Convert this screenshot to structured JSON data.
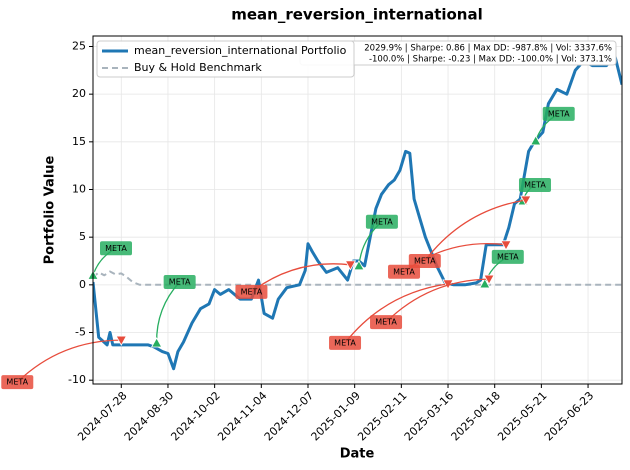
{
  "chart_data": {
    "type": "line",
    "title": "mean_reversion_international",
    "x_label": "Date",
    "y_label": "Portfolio Value",
    "xlim": [
      "2024-07-08",
      "2025-07-17"
    ],
    "ylim": [
      -10.4,
      26.1
    ],
    "xticks": [
      "2024-07-28",
      "2024-08-30",
      "2024-10-02",
      "2024-11-04",
      "2024-12-07",
      "2025-01-09",
      "2025-02-11",
      "2025-03-16",
      "2025-04-18",
      "2025-05-21",
      "2025-06-23"
    ],
    "yticks": [
      -10,
      -5,
      0,
      5,
      10,
      15,
      20,
      25
    ],
    "grid": true,
    "legend": "upper left",
    "series": [
      {
        "name": "mean_reversion_international Portfolio",
        "color": "#1f77b4",
        "style": "solid",
        "x": [
          "2024-07-08",
          "2024-07-12",
          "2024-07-18",
          "2024-07-20",
          "2024-07-22",
          "2024-08-16",
          "2024-08-20",
          "2024-08-26",
          "2024-08-30",
          "2024-09-03",
          "2024-09-06",
          "2024-09-10",
          "2024-09-16",
          "2024-09-22",
          "2024-09-28",
          "2024-10-02",
          "2024-10-06",
          "2024-10-12",
          "2024-10-20",
          "2024-10-28",
          "2024-11-02",
          "2024-11-06",
          "2024-11-12",
          "2024-11-16",
          "2024-11-22",
          "2024-12-01",
          "2024-12-05",
          "2024-12-07",
          "2024-12-10",
          "2024-12-14",
          "2024-12-20",
          "2024-12-28",
          "2025-01-04",
          "2025-01-08",
          "2025-01-12",
          "2025-01-16",
          "2025-01-20",
          "2025-01-24",
          "2025-01-28",
          "2025-02-02",
          "2025-02-06",
          "2025-02-10",
          "2025-02-14",
          "2025-02-17",
          "2025-02-20",
          "2025-02-24",
          "2025-02-28",
          "2025-03-04",
          "2025-03-08",
          "2025-03-14",
          "2025-03-20",
          "2025-03-28",
          "2025-04-05",
          "2025-04-08",
          "2025-04-12",
          "2025-04-24",
          "2025-04-28",
          "2025-05-02",
          "2025-05-06",
          "2025-05-12",
          "2025-05-16",
          "2025-05-22",
          "2025-05-26",
          "2025-06-01",
          "2025-06-08",
          "2025-06-14",
          "2025-06-20",
          "2025-06-26",
          "2025-07-06",
          "2025-07-12",
          "2025-07-17"
        ],
        "values": [
          0.3,
          -5.5,
          -6.3,
          -5.0,
          -6.3,
          -6.3,
          -6.5,
          -7,
          -7.2,
          -8.8,
          -7,
          -6,
          -4,
          -2.5,
          -2,
          -0.5,
          -1,
          -0.5,
          -1.5,
          -1.5,
          0.5,
          -3,
          -3.5,
          -1.5,
          -0.3,
          0,
          1.5,
          4.3,
          3.5,
          2.5,
          1.3,
          1.8,
          0.5,
          2.5,
          2.5,
          2.0,
          5,
          8,
          9.5,
          10.5,
          11,
          12,
          14,
          13.8,
          9,
          7,
          5,
          3.5,
          2,
          0.2,
          0,
          0,
          0.2,
          0.5,
          4.2,
          4.2,
          6,
          8.5,
          9,
          14,
          15,
          16,
          19,
          20.5,
          20,
          22.5,
          23.5,
          23,
          23,
          24,
          21
        ]
      },
      {
        "name": "Buy & Hold Benchmark",
        "color": "#a9b4bd",
        "style": "dashed",
        "x": [
          "2024-07-08",
          "2024-07-12",
          "2024-07-16",
          "2024-07-20",
          "2024-07-24",
          "2024-07-28",
          "2024-08-01",
          "2024-08-05",
          "2024-08-10",
          "2025-07-17"
        ],
        "values": [
          0.8,
          1.3,
          1.0,
          1.4,
          1.1,
          1.2,
          0.8,
          0.3,
          0,
          0
        ]
      }
    ],
    "markers": [
      {
        "kind": "buy",
        "x": "2024-07-08",
        "value": 1.0,
        "label": "META",
        "color": "#27ae60"
      },
      {
        "kind": "buy",
        "x": "2024-08-22",
        "value": -6.1,
        "label": "META",
        "color": "#27ae60"
      },
      {
        "kind": "buy",
        "x": "2025-01-12",
        "value": 2.0,
        "label": "META",
        "color": "#27ae60"
      },
      {
        "kind": "buy",
        "x": "2025-04-11",
        "value": 0.1,
        "label": "META",
        "color": "#27ae60"
      },
      {
        "kind": "buy",
        "x": "2025-05-08",
        "value": 8.8,
        "label": "META",
        "color": "#27ae60"
      },
      {
        "kind": "buy",
        "x": "2025-05-17",
        "value": 15.1,
        "label": "META",
        "color": "#27ae60"
      },
      {
        "kind": "sell",
        "x": "2024-07-28",
        "value": -5.8,
        "label": "META",
        "color": "#e74c3c"
      },
      {
        "kind": "sell",
        "x": "2025-01-06",
        "value": 2.1,
        "label": "META",
        "color": "#e74c3c"
      },
      {
        "kind": "sell",
        "x": "2025-03-16",
        "value": 0.1,
        "label": "META",
        "color": "#e74c3c"
      },
      {
        "kind": "sell",
        "x": "2025-04-14",
        "value": 0.6,
        "label": "META",
        "color": "#e74c3c"
      },
      {
        "kind": "sell",
        "x": "2025-04-26",
        "value": 4.2,
        "label": "META",
        "color": "#e74c3c"
      },
      {
        "kind": "sell",
        "x": "2025-05-10",
        "value": 8.9,
        "label": "META",
        "color": "#e74c3c"
      }
    ],
    "stats": [
      "2029.9% | Sharpe: 0.86 | Max DD: -987.8% | Vol: 3337.6%",
      "-100.0% | Sharpe: -0.23 | Max DD: -100.0% | Vol: 373.1%"
    ]
  }
}
